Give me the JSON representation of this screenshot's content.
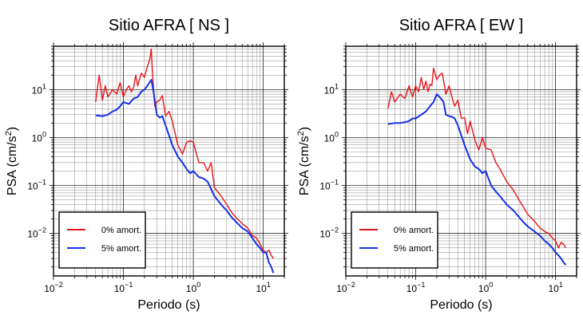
{
  "chart_data": [
    {
      "type": "line",
      "title": "Sitio AFRA [ NS ]",
      "xlabel": "Periodo (s)",
      "ylabel_main": "PSA (cm/s",
      "ylabel_sup": "2",
      "ylabel_end": ")",
      "xscale": "log",
      "yscale": "log",
      "xlim": [
        0.01,
        20
      ],
      "ylim": [
        0.0013,
        80
      ],
      "grid": true,
      "legend_position": "bottom-left",
      "x_ticks": [
        {
          "base": "10",
          "exp": "−2"
        },
        {
          "base": "10",
          "exp": "−1"
        },
        {
          "base": "10",
          "exp": "0"
        },
        {
          "base": "10",
          "exp": "1"
        }
      ],
      "y_ticks": [
        {
          "base": "10",
          "exp": "−2"
        },
        {
          "base": "10",
          "exp": "−1"
        },
        {
          "base": "10",
          "exp": "0"
        },
        {
          "base": "10",
          "exp": "1"
        }
      ],
      "series": [
        {
          "name": "0% amort.",
          "color": "#e8141b",
          "x": [
            0.04,
            0.045,
            0.05,
            0.055,
            0.06,
            0.07,
            0.08,
            0.09,
            0.1,
            0.11,
            0.12,
            0.13,
            0.14,
            0.15,
            0.16,
            0.18,
            0.2,
            0.22,
            0.24,
            0.25,
            0.26,
            0.27,
            0.28,
            0.3,
            0.33,
            0.36,
            0.4,
            0.45,
            0.5,
            0.55,
            0.6,
            0.7,
            0.8,
            0.9,
            1.0,
            1.2,
            1.4,
            1.6,
            1.8,
            2.0,
            2.5,
            3.0,
            3.5,
            4.0,
            5.0,
            6.0,
            7.0,
            8.0,
            9.0,
            10.0,
            11.0,
            12.0,
            13.0,
            14.0
          ],
          "y": [
            5.5,
            20,
            6,
            12,
            7,
            10,
            8,
            14,
            7,
            10,
            12,
            9,
            11,
            20,
            12,
            22,
            18,
            30,
            45,
            70,
            22,
            10,
            4.5,
            5.5,
            6,
            7.5,
            2.8,
            3.5,
            2.2,
            1.2,
            0.7,
            0.45,
            0.8,
            0.85,
            0.8,
            0.3,
            0.3,
            0.2,
            0.3,
            0.09,
            0.06,
            0.04,
            0.028,
            0.022,
            0.016,
            0.013,
            0.009,
            0.008,
            0.006,
            0.0045,
            0.004,
            0.0045,
            0.0035,
            0.003
          ]
        },
        {
          "name": "5% amort.",
          "color": "#1530e6",
          "x": [
            0.04,
            0.05,
            0.06,
            0.07,
            0.08,
            0.09,
            0.1,
            0.12,
            0.14,
            0.16,
            0.18,
            0.2,
            0.22,
            0.25,
            0.27,
            0.3,
            0.33,
            0.36,
            0.4,
            0.45,
            0.5,
            0.6,
            0.7,
            0.8,
            0.9,
            1.0,
            1.2,
            1.4,
            1.6,
            2.0,
            2.5,
            3.0,
            3.5,
            4.0,
            5.0,
            6.0,
            7.0,
            8.0,
            9.0,
            10.0,
            11.0,
            12.0,
            13.0,
            14.0
          ],
          "y": [
            2.9,
            2.8,
            3.0,
            3.5,
            3.8,
            4.5,
            5.5,
            5.0,
            6.5,
            7.0,
            9.0,
            10.0,
            12.0,
            16.0,
            9.0,
            3.0,
            2.6,
            2.8,
            1.8,
            1.1,
            0.7,
            0.4,
            0.3,
            0.22,
            0.18,
            0.2,
            0.15,
            0.14,
            0.12,
            0.06,
            0.04,
            0.03,
            0.022,
            0.018,
            0.013,
            0.011,
            0.008,
            0.006,
            0.005,
            0.004,
            0.004,
            0.0025,
            0.002,
            0.0015
          ]
        }
      ]
    },
    {
      "type": "line",
      "title": "Sitio AFRA [ EW ]",
      "xlabel": "Periodo (s)",
      "ylabel_main": "PSA (cm/s",
      "ylabel_sup": "2",
      "ylabel_end": ")",
      "xscale": "log",
      "yscale": "log",
      "xlim": [
        0.01,
        20
      ],
      "ylim": [
        0.0013,
        80
      ],
      "grid": true,
      "legend_position": "bottom-left",
      "x_ticks": [
        {
          "base": "10",
          "exp": "−2"
        },
        {
          "base": "10",
          "exp": "−1"
        },
        {
          "base": "10",
          "exp": "0"
        },
        {
          "base": "10",
          "exp": "1"
        }
      ],
      "y_ticks": [
        {
          "base": "10",
          "exp": "−2"
        },
        {
          "base": "10",
          "exp": "−1"
        },
        {
          "base": "10",
          "exp": "0"
        },
        {
          "base": "10",
          "exp": "1"
        }
      ],
      "series": [
        {
          "name": "0% amort.",
          "color": "#e8141b",
          "x": [
            0.04,
            0.045,
            0.05,
            0.06,
            0.07,
            0.08,
            0.09,
            0.1,
            0.11,
            0.12,
            0.13,
            0.14,
            0.15,
            0.16,
            0.17,
            0.18,
            0.2,
            0.22,
            0.24,
            0.27,
            0.3,
            0.33,
            0.36,
            0.4,
            0.45,
            0.5,
            0.55,
            0.6,
            0.7,
            0.8,
            0.9,
            1.0,
            1.2,
            1.4,
            1.6,
            2.0,
            2.5,
            3.0,
            3.5,
            4.0,
            5.0,
            6.0,
            7.0,
            8.0,
            9.0,
            10.0,
            11.0,
            12.0,
            13.0,
            14.0
          ],
          "y": [
            4.0,
            9.0,
            5.5,
            8.0,
            6.5,
            12.0,
            7.0,
            12.0,
            9.0,
            18.0,
            10.0,
            15.0,
            9.0,
            13.0,
            12.0,
            28.0,
            16.0,
            20.0,
            22.0,
            8.0,
            12.0,
            7.0,
            4.5,
            6.0,
            2.5,
            2.6,
            1.2,
            2.2,
            0.9,
            0.55,
            1.0,
            0.6,
            0.55,
            0.3,
            0.22,
            0.12,
            0.08,
            0.05,
            0.035,
            0.025,
            0.018,
            0.013,
            0.011,
            0.01,
            0.008,
            0.007,
            0.005,
            0.0065,
            0.006,
            0.005
          ]
        },
        {
          "name": "5% amort.",
          "color": "#1530e6",
          "x": [
            0.04,
            0.05,
            0.06,
            0.07,
            0.08,
            0.09,
            0.1,
            0.12,
            0.14,
            0.16,
            0.18,
            0.2,
            0.22,
            0.25,
            0.27,
            0.3,
            0.33,
            0.36,
            0.4,
            0.45,
            0.5,
            0.6,
            0.7,
            0.8,
            0.9,
            1.0,
            1.2,
            1.4,
            1.6,
            2.0,
            2.5,
            3.0,
            3.5,
            4.0,
            5.0,
            6.0,
            7.0,
            8.0,
            9.0,
            10.0,
            11.0,
            12.0,
            13.0,
            14.0
          ],
          "y": [
            1.9,
            2.0,
            2.0,
            2.1,
            2.2,
            2.5,
            2.5,
            3.0,
            3.5,
            4.5,
            5.5,
            8.0,
            7.0,
            5.5,
            3.0,
            2.8,
            2.7,
            2.5,
            1.8,
            1.1,
            0.7,
            0.35,
            0.25,
            0.22,
            0.18,
            0.2,
            0.1,
            0.075,
            0.06,
            0.04,
            0.03,
            0.022,
            0.017,
            0.014,
            0.011,
            0.009,
            0.007,
            0.006,
            0.005,
            0.004,
            0.0035,
            0.003,
            0.0025,
            0.0022
          ]
        }
      ]
    }
  ]
}
